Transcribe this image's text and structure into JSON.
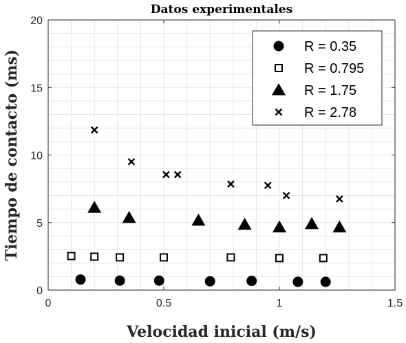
{
  "chart_data": {
    "type": "scatter",
    "title": "Datos experimentales",
    "xlabel": "Velocidad inicial (m/s)",
    "ylabel": "Tiempo de contacto (ms)",
    "xlim": [
      0,
      1.5
    ],
    "ylim": [
      0,
      20
    ],
    "xticks": [
      0,
      0.5,
      1,
      1.5
    ],
    "xtick_labels": [
      "0",
      "0.5",
      "1",
      "1.5"
    ],
    "yticks": [
      0,
      5,
      10,
      15,
      20
    ],
    "ytick_labels": [
      "0",
      "5",
      "10",
      "15",
      "20"
    ],
    "grid": true,
    "legend_position": "top-right",
    "series": [
      {
        "name": "R = 0.35",
        "marker": "circle",
        "points": [
          [
            0.14,
            0.78
          ],
          [
            0.31,
            0.7
          ],
          [
            0.48,
            0.7
          ],
          [
            0.7,
            0.65
          ],
          [
            0.88,
            0.68
          ],
          [
            1.08,
            0.61
          ],
          [
            1.2,
            0.61
          ]
        ]
      },
      {
        "name": "R = 0.795",
        "marker": "square",
        "points": [
          [
            0.1,
            2.52
          ],
          [
            0.2,
            2.47
          ],
          [
            0.31,
            2.42
          ],
          [
            0.5,
            2.42
          ],
          [
            0.79,
            2.42
          ],
          [
            1.0,
            2.37
          ],
          [
            1.19,
            2.37
          ]
        ]
      },
      {
        "name": "R = 1.75",
        "marker": "triangle",
        "points": [
          [
            0.2,
            6.1
          ],
          [
            0.35,
            5.35
          ],
          [
            0.65,
            5.15
          ],
          [
            0.85,
            4.85
          ],
          [
            1.0,
            4.65
          ],
          [
            1.14,
            4.9
          ],
          [
            1.26,
            4.65
          ]
        ]
      },
      {
        "name": "R = 2.78",
        "marker": "x",
        "points": [
          [
            0.2,
            11.85
          ],
          [
            0.36,
            9.5
          ],
          [
            0.51,
            8.55
          ],
          [
            0.56,
            8.55
          ],
          [
            0.79,
            7.85
          ],
          [
            0.95,
            7.75
          ],
          [
            1.03,
            7.0
          ],
          [
            1.26,
            6.75
          ]
        ]
      }
    ]
  }
}
